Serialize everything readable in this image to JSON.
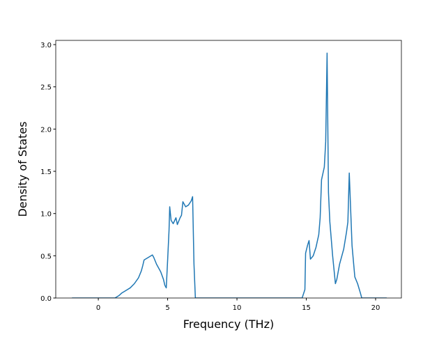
{
  "chart_data": {
    "type": "line",
    "x_label": "Frequency (THz)",
    "y_label": "Density of States",
    "xlim": [
      -3.07,
      21.86
    ],
    "ylim": [
      0,
      3.05
    ],
    "xticks": [
      0,
      5,
      10,
      15,
      20
    ],
    "yticks": [
      {
        "value": 0,
        "label": "0.0"
      },
      {
        "value": 0.5,
        "label": "0.5"
      },
      {
        "value": 1,
        "label": "1.0"
      },
      {
        "value": 1.5,
        "label": "1.5"
      },
      {
        "value": 2,
        "label": "2.0"
      },
      {
        "value": 2.5,
        "label": "2.5"
      },
      {
        "value": 3,
        "label": "3.0"
      }
    ],
    "x": [
      -1.9,
      1.2,
      1.5,
      1.7,
      2.0,
      2.3,
      2.6,
      2.9,
      3.1,
      3.2,
      3.3,
      3.5,
      3.8,
      3.9,
      4.0,
      4.2,
      4.5,
      4.7,
      4.8,
      4.9,
      5.0,
      5.1,
      5.15,
      5.25,
      5.4,
      5.6,
      5.7,
      5.9,
      6.0,
      6.1,
      6.3,
      6.5,
      6.7,
      6.8,
      6.9,
      7.0,
      14.7,
      14.9,
      14.95,
      15.1,
      15.2,
      15.3,
      15.5,
      15.7,
      15.9,
      16.0,
      16.1,
      16.3,
      16.4,
      16.5,
      16.6,
      16.7,
      16.9,
      17.1,
      17.2,
      17.4,
      17.7,
      17.9,
      18.0,
      18.1,
      18.2,
      18.3,
      18.5,
      18.7,
      18.9,
      19.0,
      20.8
    ],
    "series": [
      {
        "color": "#1f77b4",
        "values": [
          0,
          0,
          0.03,
          0.06,
          0.09,
          0.12,
          0.17,
          0.24,
          0.32,
          0.38,
          0.45,
          0.47,
          0.5,
          0.51,
          0.48,
          0.4,
          0.31,
          0.22,
          0.15,
          0.12,
          0.45,
          0.8,
          1.08,
          0.92,
          0.88,
          0.95,
          0.87,
          0.95,
          0.98,
          1.14,
          1.08,
          1.1,
          1.15,
          1.2,
          0.4,
          0,
          0,
          0.1,
          0.53,
          0.63,
          0.68,
          0.46,
          0.5,
          0.6,
          0.75,
          0.95,
          1.4,
          1.55,
          1.85,
          2.9,
          1.25,
          0.9,
          0.5,
          0.17,
          0.22,
          0.4,
          0.58,
          0.78,
          0.9,
          1.48,
          1.05,
          0.62,
          0.25,
          0.17,
          0.06,
          0,
          0
        ]
      }
    ]
  }
}
